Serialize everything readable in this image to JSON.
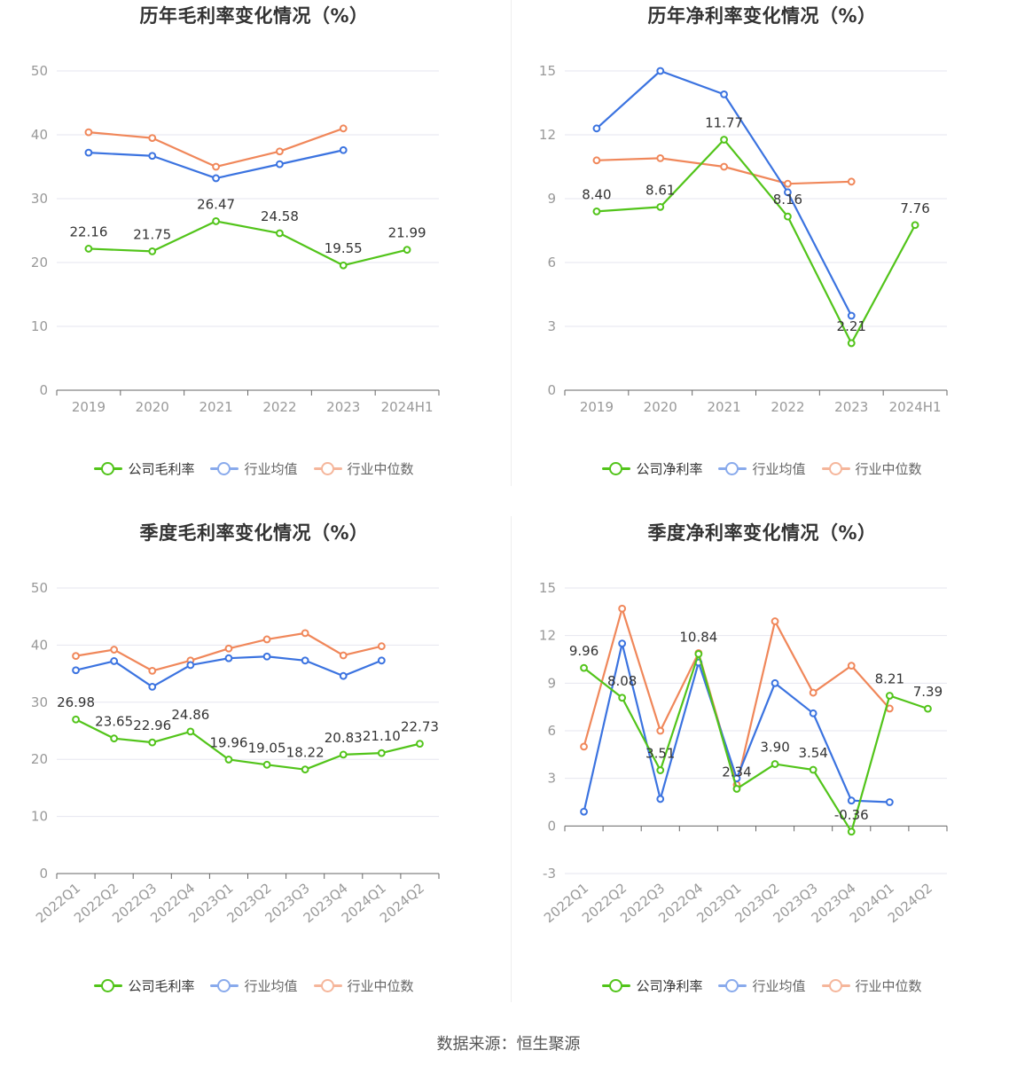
{
  "colors": {
    "company": "#52c41a",
    "avg": "#3b73e0",
    "median": "#f0875a",
    "grid": "#e6e6ef",
    "axis": "#999999",
    "text": "#333333"
  },
  "legend": {
    "gross": [
      "公司毛利率",
      "行业均值",
      "行业中位数"
    ],
    "net": [
      "公司净利率",
      "行业均值",
      "行业中位数"
    ]
  },
  "source": "数据来源：恒生聚源",
  "chart_data": [
    {
      "type": "line",
      "title": "历年毛利率变化情况（%）",
      "categories": [
        "2019",
        "2020",
        "2021",
        "2022",
        "2023",
        "2024H1"
      ],
      "ylim": [
        0,
        50
      ],
      "yticks": [
        0,
        10,
        20,
        30,
        40,
        50
      ],
      "grid": true,
      "legend_position": "bottom",
      "series": [
        {
          "name": "公司毛利率",
          "values": [
            22.16,
            21.75,
            26.47,
            24.58,
            19.55,
            21.99
          ],
          "labels": true
        },
        {
          "name": "行业均值",
          "values": [
            37.2,
            36.7,
            33.2,
            35.4,
            37.6,
            null
          ]
        },
        {
          "name": "行业中位数",
          "values": [
            40.4,
            39.5,
            35.0,
            37.4,
            41.0,
            null
          ]
        }
      ]
    },
    {
      "type": "line",
      "title": "历年净利率变化情况（%）",
      "categories": [
        "2019",
        "2020",
        "2021",
        "2022",
        "2023",
        "2024H1"
      ],
      "ylim": [
        0,
        15
      ],
      "yticks": [
        0,
        3,
        6,
        9,
        12,
        15
      ],
      "grid": true,
      "legend_position": "bottom",
      "series": [
        {
          "name": "公司净利率",
          "values": [
            8.4,
            8.61,
            11.77,
            8.16,
            2.21,
            7.76
          ],
          "labels": true
        },
        {
          "name": "行业均值",
          "values": [
            12.3,
            15.0,
            13.9,
            9.3,
            3.5,
            null
          ]
        },
        {
          "name": "行业中位数",
          "values": [
            10.8,
            10.9,
            10.5,
            9.7,
            9.8,
            null
          ]
        }
      ]
    },
    {
      "type": "line",
      "title": "季度毛利率变化情况（%）",
      "categories": [
        "2022Q1",
        "2022Q2",
        "2022Q3",
        "2022Q4",
        "2023Q1",
        "2023Q2",
        "2023Q3",
        "2023Q4",
        "2024Q1",
        "2024Q2"
      ],
      "ylim": [
        0,
        50
      ],
      "yticks": [
        0,
        10,
        20,
        30,
        40,
        50
      ],
      "grid": true,
      "legend_position": "bottom",
      "series": [
        {
          "name": "公司毛利率",
          "values": [
            26.98,
            23.65,
            22.96,
            24.86,
            19.96,
            19.05,
            18.22,
            20.83,
            21.1,
            22.73
          ],
          "labels": true
        },
        {
          "name": "行业均值",
          "values": [
            35.6,
            37.2,
            32.7,
            36.5,
            37.7,
            38.0,
            37.3,
            34.6,
            37.3,
            null
          ]
        },
        {
          "name": "行业中位数",
          "values": [
            38.1,
            39.2,
            35.5,
            37.3,
            39.4,
            41.0,
            42.1,
            38.2,
            39.8,
            null
          ]
        }
      ]
    },
    {
      "type": "line",
      "title": "季度净利率变化情况（%）",
      "categories": [
        "2022Q1",
        "2022Q2",
        "2022Q3",
        "2022Q4",
        "2023Q1",
        "2023Q2",
        "2023Q3",
        "2023Q4",
        "2024Q1",
        "2024Q2"
      ],
      "ylim": [
        -3,
        15
      ],
      "yticks": [
        -3,
        0,
        3,
        6,
        9,
        12,
        15
      ],
      "grid": true,
      "legend_position": "bottom",
      "series": [
        {
          "name": "公司净利率",
          "values": [
            9.96,
            8.08,
            3.51,
            10.84,
            2.34,
            3.9,
            3.54,
            -0.36,
            8.21,
            7.39
          ],
          "labels": true
        },
        {
          "name": "行业均值",
          "values": [
            0.9,
            11.5,
            1.7,
            10.3,
            3.0,
            9.0,
            7.1,
            1.6,
            1.5,
            null
          ]
        },
        {
          "name": "行业中位数",
          "values": [
            5.0,
            13.7,
            6.0,
            10.9,
            2.6,
            12.9,
            8.4,
            10.1,
            7.4,
            null
          ]
        }
      ]
    }
  ]
}
